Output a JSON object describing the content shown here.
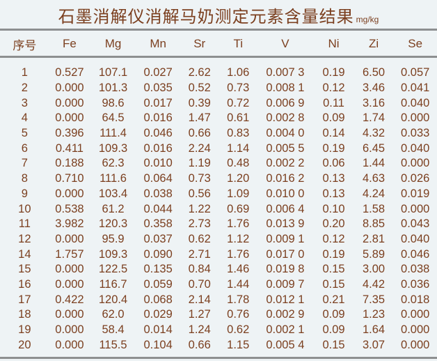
{
  "title": "石墨消解仪消解马奶测定元素含量结果",
  "unit": "mg/kg",
  "columns": [
    "序号",
    "Fe",
    "Mg",
    "Mn",
    "Sr",
    "Ti",
    "V",
    "Ni",
    "Zi",
    "Se"
  ],
  "rows": [
    [
      "1",
      "0.527",
      "107.1",
      "0.027",
      "2.62",
      "1.06",
      "0.007 3",
      "0.19",
      "6.50",
      "0.057"
    ],
    [
      "2",
      "0.000",
      "101.3",
      "0.035",
      "0.52",
      "0.73",
      "0.008 1",
      "0.12",
      "3.46",
      "0.041"
    ],
    [
      "3",
      "0.000",
      "98.6",
      "0.017",
      "0.39",
      "0.72",
      "0.006 9",
      "0.11",
      "3.16",
      "0.040"
    ],
    [
      "4",
      "0.000",
      "64.5",
      "0.016",
      "1.47",
      "0.61",
      "0.002 8",
      "0.09",
      "1.74",
      "0.000"
    ],
    [
      "5",
      "0.396",
      "111.4",
      "0.046",
      "0.66",
      "0.83",
      "0.004 0",
      "0.14",
      "4.32",
      "0.033"
    ],
    [
      "6",
      "0.411",
      "109.3",
      "0.016",
      "2.24",
      "1.14",
      "0.005 5",
      "0.19",
      "6.45",
      "0.040"
    ],
    [
      "7",
      "0.188",
      "62.3",
      "0.010",
      "1.19",
      "0.48",
      "0.002 2",
      "0.06",
      "1.44",
      "0.000"
    ],
    [
      "8",
      "0.710",
      "111.6",
      "0.064",
      "0.73",
      "1.20",
      "0.016 2",
      "0.13",
      "4.63",
      "0.026"
    ],
    [
      "9",
      "0.000",
      "103.4",
      "0.038",
      "0.56",
      "1.09",
      "0.010 0",
      "0.13",
      "4.24",
      "0.019"
    ],
    [
      "10",
      "0.538",
      "61.2",
      "0.044",
      "1.22",
      "0.69",
      "0.006 4",
      "0.10",
      "1.58",
      "0.000"
    ],
    [
      "11",
      "3.982",
      "120.3",
      "0.358",
      "2.73",
      "1.76",
      "0.013 9",
      "0.20",
      "8.85",
      "0.043"
    ],
    [
      "12",
      "0.000",
      "95.9",
      "0.037",
      "0.62",
      "1.12",
      "0.009 1",
      "0.12",
      "2.81",
      "0.040"
    ],
    [
      "14",
      "1.757",
      "109.3",
      "0.090",
      "2.71",
      "1.76",
      "0.017 0",
      "0.19",
      "5.89",
      "0.046"
    ],
    [
      "15",
      "0.000",
      "122.5",
      "0.135",
      "0.84",
      "1.46",
      "0.019 8",
      "0.15",
      "3.00",
      "0.038"
    ],
    [
      "16",
      "0.000",
      "116.7",
      "0.059",
      "0.70",
      "1.44",
      "0.009 7",
      "0.15",
      "4.42",
      "0.036"
    ],
    [
      "17",
      "0.422",
      "120.4",
      "0.068",
      "2.14",
      "1.78",
      "0.012 1",
      "0.21",
      "7.35",
      "0.018"
    ],
    [
      "18",
      "0.000",
      "62.0",
      "0.029",
      "1.27",
      "0.76",
      "0.002 9",
      "0.09",
      "1.23",
      "0.000"
    ],
    [
      "19",
      "0.000",
      "58.4",
      "0.014",
      "1.24",
      "0.62",
      "0.002 1",
      "0.09",
      "1.64",
      "0.000"
    ],
    [
      "20",
      "0.000",
      "115.5",
      "0.104",
      "0.66",
      "1.15",
      "0.005 4",
      "0.15",
      "3.07",
      "0.000"
    ]
  ]
}
